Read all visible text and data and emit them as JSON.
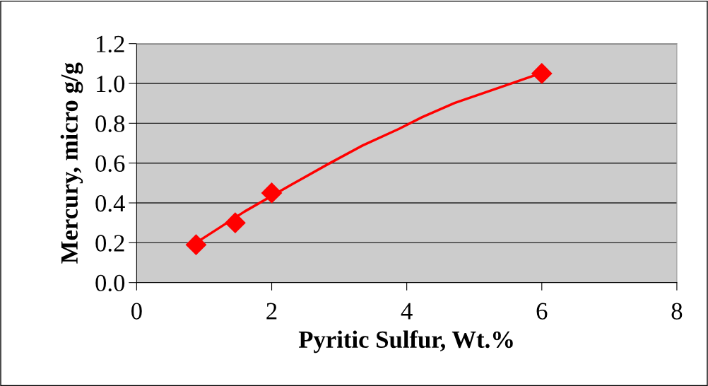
{
  "chart_data": {
    "type": "scatter",
    "xlabel": "Pyritic Sulfur, Wt.%",
    "ylabel": "Mercury, micro g/g",
    "series": [
      {
        "color": "#ff0000",
        "marker": "diamond",
        "x": [
          0.88,
          1.46,
          2.0,
          6.0
        ],
        "values": [
          0.19,
          0.3,
          0.45,
          1.05
        ]
      },
      {
        "type": "line",
        "color": "#ff0000",
        "marker": "none",
        "line_style": "solid",
        "x": [
          0.88,
          1.6,
          2.3,
          2.83,
          3.35,
          3.88,
          4.23,
          4.71,
          5.41,
          5.87,
          6.0
        ],
        "values": [
          0.2,
          0.357,
          0.493,
          0.594,
          0.689,
          0.771,
          0.831,
          0.902,
          0.984,
          1.038,
          1.05
        ]
      }
    ],
    "xlim": [
      0,
      8
    ],
    "xticks": [
      0,
      2,
      4,
      6,
      8
    ],
    "ylim": [
      0,
      1.2
    ],
    "yticks": [
      {
        "value": 0,
        "label": "0.0"
      },
      {
        "value": 0.2,
        "label": "0.2"
      },
      {
        "value": 0.4,
        "label": "0.4"
      },
      {
        "value": 0.6,
        "label": "0.6"
      },
      {
        "value": 0.8,
        "label": "0.8"
      },
      {
        "value": 1.0,
        "label": "1.0"
      },
      {
        "value": 1.2,
        "label": "1.2"
      }
    ],
    "grid": "y"
  }
}
